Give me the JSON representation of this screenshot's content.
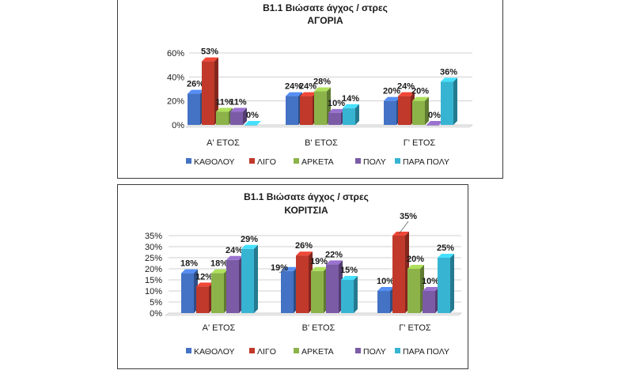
{
  "colors": [
    "#4472c4",
    "#c0392b",
    "#8cb34a",
    "#7b5ba6",
    "#37b4d2"
  ],
  "chart_data": [
    {
      "type": "bar",
      "title": "Β1.1  Βιώσατε άγχος / στρες",
      "subtitle": "ΑΓΟΡΙΑ",
      "categories": [
        "Α' ΕΤΟΣ",
        "Β' ΕΤΟΣ",
        "Γ' ΕΤΟΣ"
      ],
      "series": [
        {
          "name": "ΚΑΘΟΛΟΥ",
          "values": [
            26,
            24,
            20
          ],
          "labels": [
            "26%",
            "24%",
            "20%"
          ]
        },
        {
          "name": "ΛΙΓΟ",
          "values": [
            53,
            24,
            24
          ],
          "labels": [
            "53%",
            "24%",
            "24%"
          ]
        },
        {
          "name": "ΑΡΚΕΤΑ",
          "values": [
            11,
            28,
            20
          ],
          "labels": [
            "11%",
            "28%",
            "20%"
          ]
        },
        {
          "name": "ΠΟΛΥ",
          "values": [
            11,
            10,
            0
          ],
          "labels": [
            "11%",
            "10%",
            "0%"
          ]
        },
        {
          "name": "ΠΑΡΑ ΠΟΛΥ",
          "values": [
            0,
            14,
            36
          ],
          "labels": [
            "0%",
            "14%",
            "36%"
          ]
        }
      ],
      "ylim": [
        0,
        60
      ],
      "yticks": [
        "0%",
        "20%",
        "40%",
        "60%"
      ],
      "grid": true,
      "legend": "bottom"
    },
    {
      "type": "bar",
      "title": "Β1.1  Βιώσατε άγχος / στρες",
      "subtitle": "ΚΟΡΙΤΣΙΑ",
      "categories": [
        "Α' ΕΤΟΣ",
        "Β' ΕΤΟΣ",
        "Γ' ΕΤΟΣ"
      ],
      "series": [
        {
          "name": "ΚΑΘΟΛΟΥ",
          "values": [
            18,
            19,
            10
          ],
          "labels": [
            "18%",
            "19%",
            "10%"
          ]
        },
        {
          "name": "ΛΙΓΟ",
          "values": [
            12,
            26,
            35
          ],
          "labels": [
            "12%",
            "26%",
            "35%"
          ]
        },
        {
          "name": "ΑΡΚΕΤΑ",
          "values": [
            18,
            19,
            20
          ],
          "labels": [
            "18%",
            "19%",
            "20%"
          ]
        },
        {
          "name": "ΠΟΛΥ",
          "values": [
            24,
            22,
            10
          ],
          "labels": [
            "24%",
            "22%",
            "10%"
          ]
        },
        {
          "name": "ΠΑΡΑ ΠΟΛΥ",
          "values": [
            29,
            15,
            25
          ],
          "labels": [
            "29%",
            "15%",
            "25%"
          ]
        }
      ],
      "ylim": [
        0,
        35
      ],
      "yticks": [
        "0%",
        "5%",
        "10%",
        "15%",
        "20%",
        "25%",
        "30%",
        "35%"
      ],
      "grid": true,
      "legend": "bottom"
    }
  ]
}
